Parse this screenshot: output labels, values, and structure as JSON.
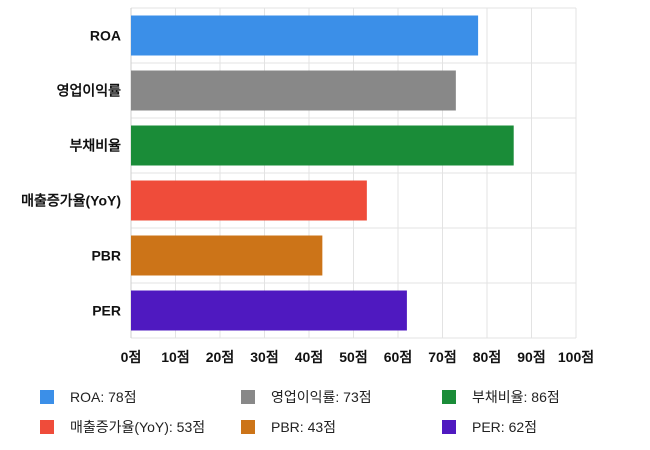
{
  "chart_data": {
    "type": "bar",
    "orientation": "horizontal",
    "categories": [
      "ROA",
      "영업이익률",
      "부채비율",
      "매출증가율(YoY)",
      "PBR",
      "PER"
    ],
    "values": [
      78,
      73,
      86,
      53,
      43,
      62
    ],
    "colors": [
      "#3b8fe8",
      "#888888",
      "#1a8c38",
      "#ef4c3a",
      "#cc7418",
      "#4f19c0"
    ],
    "xlim": [
      0,
      100
    ],
    "x_ticks": [
      0,
      10,
      20,
      30,
      40,
      50,
      60,
      70,
      80,
      90,
      100
    ],
    "tick_labels": [
      "0점",
      "10점",
      "20점",
      "30점",
      "40점",
      "50점",
      "60점",
      "70점",
      "80점",
      "90점",
      "100점"
    ],
    "grid": true,
    "legend_position": "bottom",
    "legend": [
      {
        "label": "ROA: 78점",
        "color": "#3b8fe8"
      },
      {
        "label": "영업이익률: 73점",
        "color": "#888888"
      },
      {
        "label": "부채비율: 86점",
        "color": "#1a8c38"
      },
      {
        "label": "매출증가율(YoY): 53점",
        "color": "#ef4c3a"
      },
      {
        "label": "PBR: 43점",
        "color": "#cc7418"
      },
      {
        "label": "PER: 62점",
        "color": "#4f19c0"
      }
    ]
  }
}
